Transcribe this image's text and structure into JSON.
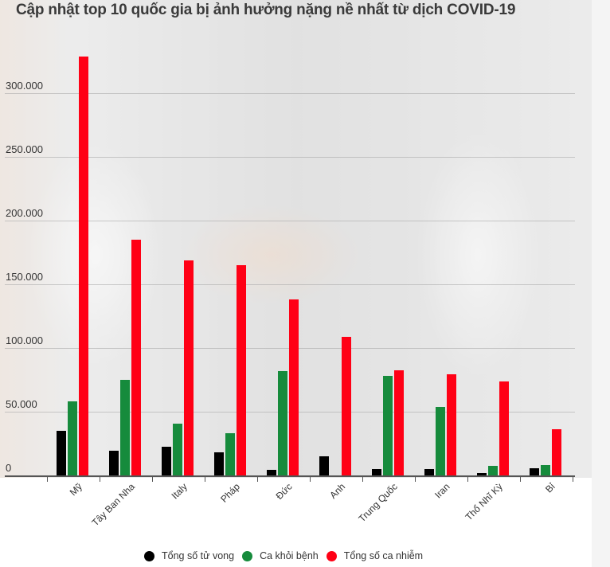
{
  "title": "Cập nhật top 10 quốc gia bị ảnh hưởng nặng nề nhất từ dịch COVID-19",
  "legend": [
    {
      "label": "Tổng số tử vong",
      "color": "#000000"
    },
    {
      "label": "Ca khỏi bệnh",
      "color": "#168b3c"
    },
    {
      "label": "Tổng số ca nhiễm",
      "color": "#ff0015"
    }
  ],
  "y_ticks": [
    "0",
    "50.000",
    "100.000",
    "150.000",
    "200.000",
    "250.000",
    "300.000"
  ],
  "chart_data": {
    "type": "bar",
    "title": "Cập nhật top 10 quốc gia bị ảnh hưởng nặng nề nhất từ dịch COVID-19",
    "xlabel": "",
    "ylabel": "",
    "ylim": [
      0,
      330000
    ],
    "grid": true,
    "legend_position": "bottom",
    "categories": [
      "Mỹ",
      "Tây Ban Nha",
      "Italy",
      "Pháp",
      "Đức",
      "Anh",
      "Trung Quốc",
      "Iran",
      "Thổ Nhĩ Kỳ",
      "Bỉ"
    ],
    "series": [
      {
        "name": "Tổng số tử vong",
        "color": "#000000",
        "values": [
          35000,
          19500,
          22500,
          18000,
          4500,
          15000,
          5000,
          5000,
          2000,
          5600
        ]
      },
      {
        "name": "Ca khỏi bệnh",
        "color": "#168b3c",
        "values": [
          58000,
          75000,
          40600,
          33000,
          82000,
          0,
          78000,
          54000,
          7500,
          8200
        ]
      },
      {
        "name": "Tổng số ca nhiễm",
        "color": "#ff0015",
        "values": [
          329000,
          185000,
          169000,
          165000,
          138000,
          109000,
          82500,
          79500,
          74000,
          36500
        ]
      }
    ]
  }
}
